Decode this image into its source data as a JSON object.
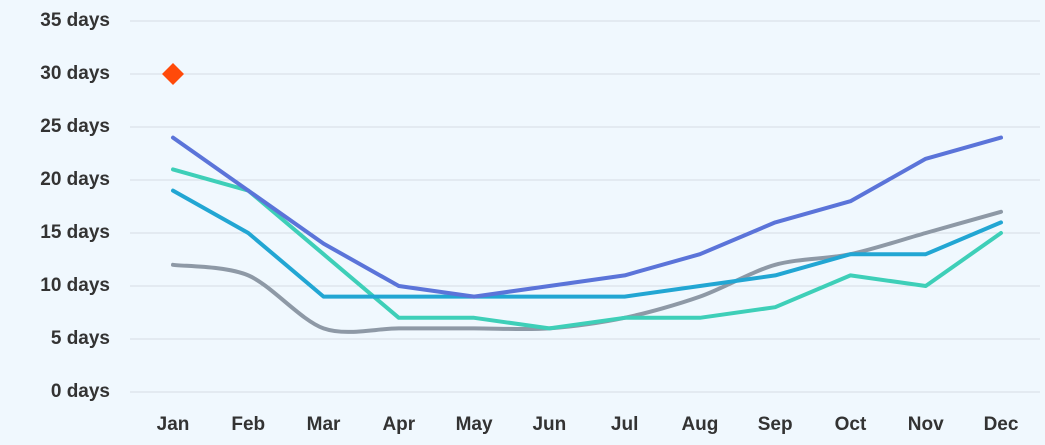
{
  "chart_data": {
    "type": "line",
    "categories": [
      "Jan",
      "Feb",
      "Mar",
      "Apr",
      "May",
      "Jun",
      "Jul",
      "Aug",
      "Sep",
      "Oct",
      "Nov",
      "Dec"
    ],
    "series": [
      {
        "color": "#8e99a6",
        "smooth": true,
        "values": [
          12,
          11,
          6,
          6,
          6,
          6,
          7,
          9,
          12,
          13,
          15,
          17
        ]
      },
      {
        "color": "#3ecfb8",
        "values": [
          21,
          19,
          13,
          7,
          7,
          6,
          7,
          7,
          8,
          11,
          10,
          15
        ]
      },
      {
        "color": "#22a6d3",
        "values": [
          19,
          15,
          9,
          9,
          9,
          9,
          9,
          10,
          11,
          13,
          13,
          16
        ]
      },
      {
        "color": "#5b74d9",
        "values": [
          24,
          19,
          14,
          10,
          9,
          10,
          11,
          13,
          16,
          18,
          22,
          24
        ]
      },
      {
        "color": "#ff4a0a",
        "marker": "diamond",
        "values": [
          30,
          null,
          null,
          null,
          null,
          null,
          null,
          null,
          null,
          null,
          null,
          null
        ]
      }
    ],
    "ylim": [
      0,
      35
    ],
    "yticks": [
      {
        "value": 0,
        "label": "0 days"
      },
      {
        "value": 5,
        "label": "5 days"
      },
      {
        "value": 10,
        "label": "10 days"
      },
      {
        "value": 15,
        "label": "15 days"
      },
      {
        "value": 20,
        "label": "20 days"
      },
      {
        "value": 25,
        "label": "25 days"
      },
      {
        "value": 30,
        "label": "30 days"
      },
      {
        "value": 35,
        "label": "35 days"
      }
    ],
    "grid": true
  }
}
